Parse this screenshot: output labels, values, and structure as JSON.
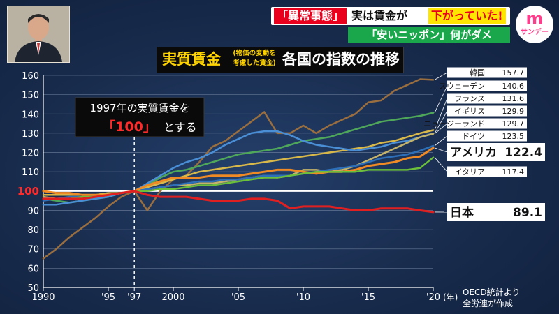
{
  "header": {
    "tag": "「異常事態」",
    "headline_mid": "実は賃金が",
    "headline_highlight": "下がっていた!",
    "subheadline": "「安いニッポン」何がダメ",
    "logo_mark": "m",
    "logo_sub": "サンデー"
  },
  "annotation": {
    "line1": "1997年の実質賃金を",
    "value": "「100」",
    "suffix": "とする"
  },
  "source": {
    "line1": "OECD統計より",
    "line2": "全労連が作成"
  },
  "colors": {
    "grid": "#8a9ab5",
    "reference_line": "#ffffff",
    "axis_text": "#ffffff",
    "highlight_red": "#ff2a2a",
    "label_box": "#ffffff"
  },
  "chart_data": {
    "type": "line",
    "title": "実質賃金",
    "title_note": "(物価の変動を考慮した賃金)",
    "title_rest": "各国の指数の推移",
    "x": [
      1990,
      1991,
      1992,
      1993,
      1994,
      1995,
      1996,
      1997,
      1998,
      1999,
      2000,
      2001,
      2002,
      2003,
      2004,
      2005,
      2006,
      2007,
      2008,
      2009,
      2010,
      2011,
      2012,
      2013,
      2014,
      2015,
      2016,
      2017,
      2018,
      2019,
      2020
    ],
    "x_ticks": [
      {
        "value": 1990,
        "label": "1990"
      },
      {
        "value": 1995,
        "label": "'95"
      },
      {
        "value": 1997,
        "label": "'97"
      },
      {
        "value": 2000,
        "label": "2000"
      },
      {
        "value": 2005,
        "label": "'05"
      },
      {
        "value": 2010,
        "label": "'10"
      },
      {
        "value": 2015,
        "label": "'15"
      },
      {
        "value": 2020,
        "label": "'20"
      }
    ],
    "x_unit": "(年)",
    "ylim": [
      50,
      160
    ],
    "y_ticks": [
      50,
      60,
      70,
      80,
      90,
      100,
      110,
      120,
      130,
      140,
      150,
      160
    ],
    "y_highlight": 100,
    "reference_x": 1997,
    "series": [
      {
        "name": "韓国",
        "value_label": "157.7",
        "color": "#9a6e3f",
        "values": [
          65,
          70,
          76,
          81,
          86,
          92,
          97,
          100,
          90,
          100,
          106,
          108,
          115,
          123,
          126,
          131,
          136,
          141,
          130,
          130,
          134,
          130,
          134,
          137,
          140,
          146,
          147,
          152,
          155,
          158,
          157.7
        ]
      },
      {
        "name": "スウェーデン",
        "value_label": "140.6",
        "color": "#4fa85a",
        "values": [
          96,
          95,
          94,
          95,
          96,
          97,
          99,
          100,
          103,
          107,
          110,
          111,
          113,
          115,
          117,
          119,
          120,
          121,
          122,
          124,
          126,
          127,
          128,
          130,
          132,
          134,
          136,
          137,
          138,
          139,
          140.6
        ]
      },
      {
        "name": "フランス",
        "value_label": "131.6",
        "color": "#d9b84a",
        "values": [
          98,
          98,
          98,
          98,
          98,
          99,
          99,
          100,
          102,
          104,
          106,
          108,
          110,
          111,
          112,
          113,
          114,
          115,
          116,
          117,
          118,
          119,
          120,
          121,
          122,
          123,
          125,
          126,
          128,
          130,
          131.6
        ]
      },
      {
        "name": "イギリス",
        "value_label": "129.9",
        "color": "#4a8fd6",
        "values": [
          93,
          93,
          94,
          95,
          96,
          97,
          99,
          100,
          104,
          108,
          112,
          115,
          117,
          120,
          124,
          127,
          130,
          131,
          131,
          129,
          126,
          124,
          123,
          122,
          121,
          122,
          123,
          125,
          126,
          128,
          129.9
        ]
      },
      {
        "name": "ニュージーランド",
        "value_label": "129.7",
        "color": "#c4b36a",
        "values": [
          97,
          96,
          96,
          97,
          97,
          98,
          99,
          100,
          101,
          102,
          103,
          103,
          104,
          104,
          105,
          106,
          107,
          108,
          107,
          108,
          111,
          111,
          110,
          111,
          113,
          116,
          119,
          122,
          125,
          128,
          129.7
        ]
      },
      {
        "name": "ドイツ",
        "value_label": "123.5",
        "color": "#2d6fb8",
        "values": [
          95,
          96,
          97,
          97,
          97,
          98,
          99,
          100,
          101,
          102,
          103,
          104,
          105,
          105,
          106,
          106,
          107,
          108,
          108,
          108,
          109,
          110,
          111,
          112,
          113,
          115,
          117,
          118,
          119,
          121,
          123.5
        ]
      },
      {
        "name": "アメリカ",
        "value_label": "122.4",
        "color": "#f08a24",
        "emphasis": true,
        "values": [
          100,
          99,
          99,
          98,
          98,
          98,
          99,
          100,
          103,
          105,
          107,
          107,
          107,
          108,
          108,
          108,
          109,
          110,
          111,
          111,
          110,
          109,
          110,
          110,
          111,
          113,
          114,
          115,
          117,
          118,
          122.4
        ]
      },
      {
        "name": "イタリア",
        "value_label": "117.4",
        "color": "#6bbf3a",
        "values": [
          96,
          96,
          96,
          97,
          97,
          98,
          99,
          100,
          100,
          101,
          101,
          102,
          103,
          103,
          104,
          105,
          106,
          107,
          107,
          108,
          109,
          110,
          110,
          110,
          110,
          111,
          111,
          111,
          111,
          112,
          117.4
        ]
      },
      {
        "name": "日本",
        "value_label": "89.1",
        "color": "#e02020",
        "emphasis": true,
        "values": [
          96,
          96,
          96,
          96,
          97,
          98,
          99,
          100,
          98,
          97,
          97,
          97,
          96,
          95,
          95,
          95,
          96,
          96,
          95,
          91,
          92,
          92,
          92,
          91,
          90,
          90,
          91,
          91,
          91,
          90,
          89.1
        ]
      }
    ]
  }
}
